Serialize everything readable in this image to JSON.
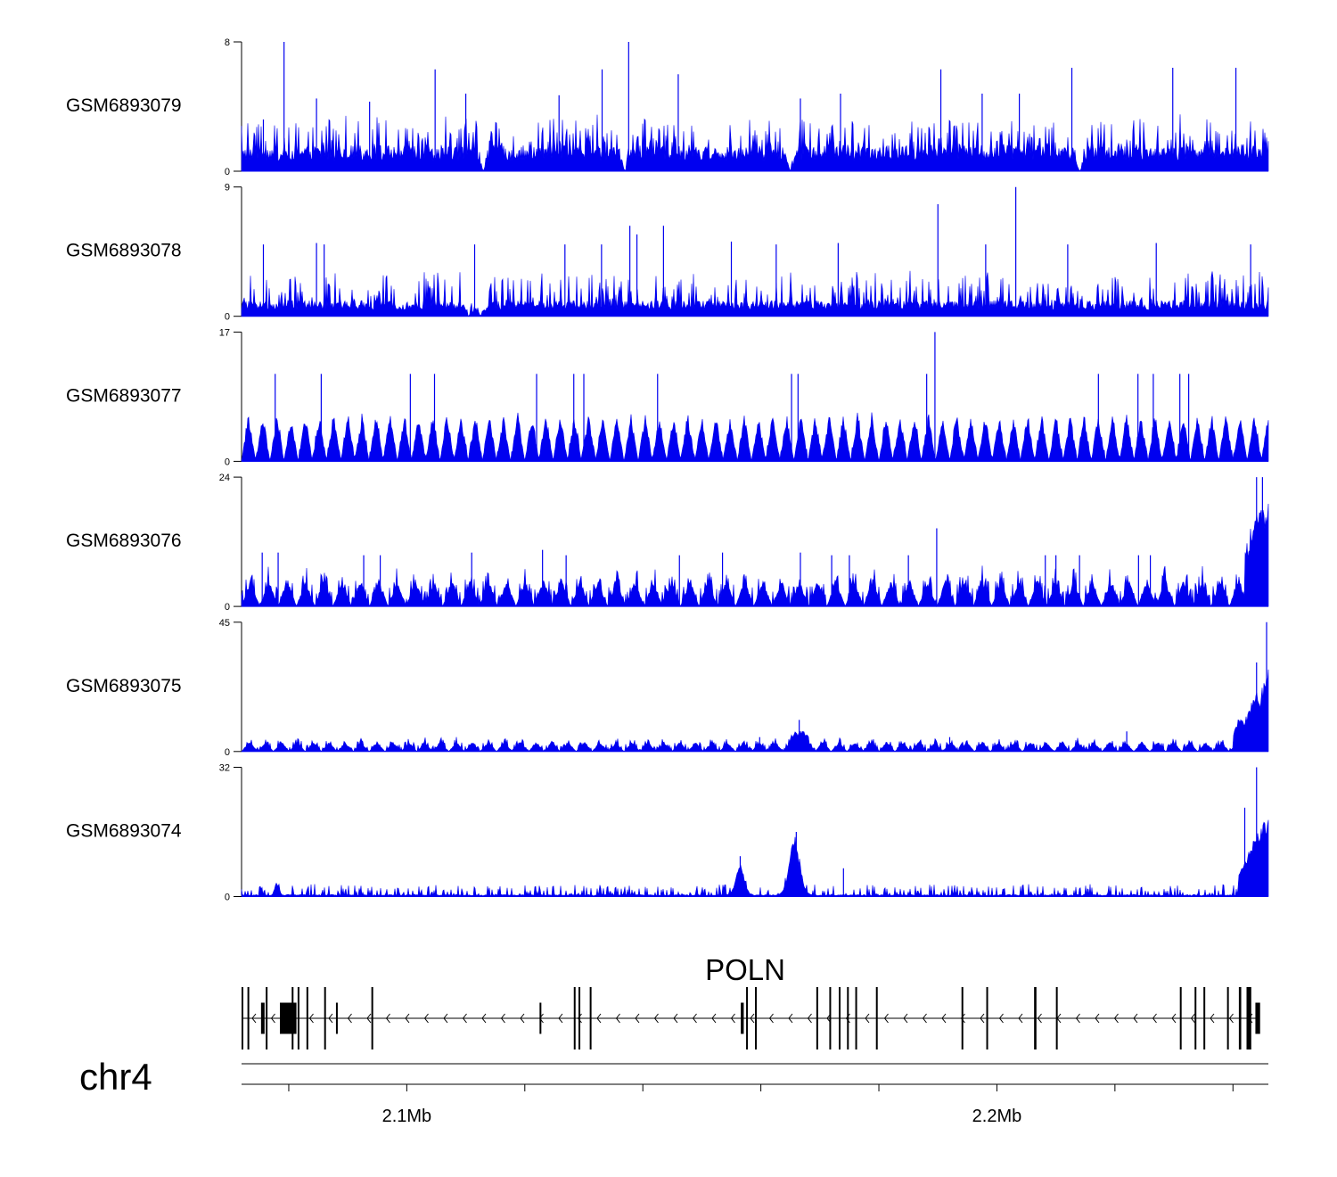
{
  "chart_data": {
    "type": "area",
    "description_style": "genome-browser coverage tracks",
    "x_unit": "Mb",
    "xlim": [
      2.072,
      2.246
    ],
    "series_color": "#0000f0",
    "tracks": [
      {
        "name": "GSM6893079",
        "ymin": 0,
        "ymax": 8,
        "ymin_label": "0",
        "ymax_label": "8",
        "baseline": 1.6,
        "noise": 0.9,
        "spikes": [
          [
            2.0792,
            8
          ],
          [
            2.0757,
            3.2
          ],
          [
            2.0847,
            4.5
          ],
          [
            2.0937,
            4.3
          ],
          [
            2.1048,
            6.3
          ],
          [
            2.11,
            4.8
          ],
          [
            2.1258,
            4.7
          ],
          [
            2.1331,
            6.3
          ],
          [
            2.1376,
            8
          ],
          [
            2.146,
            6.0
          ],
          [
            2.1667,
            4.5
          ],
          [
            2.1735,
            4.8
          ],
          [
            2.1905,
            6.3
          ],
          [
            2.1975,
            4.8
          ],
          [
            2.2038,
            4.8
          ],
          [
            2.2127,
            6.4
          ],
          [
            2.2298,
            6.4
          ],
          [
            2.2405,
            6.4
          ]
        ],
        "valleys": [
          2.113,
          2.137,
          2.165,
          2.214
        ]
      },
      {
        "name": "GSM6893078",
        "ymin": 0,
        "ymax": 9,
        "ymin_label": "0",
        "ymax_label": "9",
        "baseline": 1.1,
        "noise": 1.0,
        "spikes": [
          [
            2.0757,
            5.0
          ],
          [
            2.0847,
            5.1
          ],
          [
            2.086,
            5.0
          ],
          [
            2.1115,
            5.0
          ],
          [
            2.1268,
            5.0
          ],
          [
            2.133,
            5.0
          ],
          [
            2.1378,
            6.3
          ],
          [
            2.139,
            5.7
          ],
          [
            2.1435,
            6.3
          ],
          [
            2.155,
            5.2
          ],
          [
            2.1626,
            5.0
          ],
          [
            2.1731,
            5.1
          ],
          [
            2.19,
            7.8
          ],
          [
            2.1981,
            5.0
          ],
          [
            2.2032,
            9.0
          ],
          [
            2.212,
            5.0
          ],
          [
            2.227,
            5.1
          ],
          [
            2.243,
            5.0
          ]
        ],
        "valleys": [
          2.1105,
          2.1125
        ]
      },
      {
        "name": "GSM6893077",
        "ymin": 0,
        "ymax": 17,
        "ymin_label": "0",
        "ymax_label": "17",
        "baseline": 0,
        "noise": 0.3,
        "triangle_step": 0.0024,
        "triangle_height": 5.5,
        "spikes": [
          [
            2.0777,
            11.5
          ],
          [
            2.0855,
            11.5
          ],
          [
            2.1006,
            11.5
          ],
          [
            2.1047,
            11.5
          ],
          [
            2.122,
            11.5
          ],
          [
            2.1283,
            11.5
          ],
          [
            2.13,
            11.5
          ],
          [
            2.1425,
            11.5
          ],
          [
            2.1652,
            11.5
          ],
          [
            2.1663,
            11.5
          ],
          [
            2.1881,
            11.5
          ],
          [
            2.1895,
            17
          ],
          [
            2.2172,
            11.5
          ],
          [
            2.2239,
            11.5
          ],
          [
            2.2265,
            11.5
          ],
          [
            2.231,
            11.5
          ],
          [
            2.2325,
            11.5
          ]
        ],
        "valleys": []
      },
      {
        "name": "GSM6893076",
        "ymin": 0,
        "ymax": 24,
        "ymin_label": "0",
        "ymax_label": "24",
        "baseline": 0,
        "noise": 1.5,
        "triangle_step": 0.0031,
        "triangle_height": 4.5,
        "spikes": [
          [
            2.0755,
            10
          ],
          [
            2.0782,
            10
          ],
          [
            2.0927,
            9.5
          ],
          [
            2.0955,
            9.5
          ],
          [
            2.111,
            10
          ],
          [
            2.123,
            10.5
          ],
          [
            2.127,
            9.5
          ],
          [
            2.1462,
            9.5
          ],
          [
            2.1535,
            10
          ],
          [
            2.1667,
            10
          ],
          [
            2.172,
            9.5
          ],
          [
            2.175,
            9.5
          ],
          [
            2.185,
            9.5
          ],
          [
            2.1898,
            14.5
          ],
          [
            2.2082,
            9.5
          ],
          [
            2.21,
            9.5
          ],
          [
            2.214,
            9.5
          ],
          [
            2.224,
            9.5
          ],
          [
            2.226,
            9.5
          ],
          [
            2.2424,
            10
          ],
          [
            2.244,
            24
          ],
          [
            2.245,
            24
          ]
        ],
        "rise": [
          [
            2.242,
            2.246,
            8,
            18
          ]
        ],
        "valleys": []
      },
      {
        "name": "GSM6893075",
        "ymin": 0,
        "ymax": 45,
        "ymin_label": "0",
        "ymax_label": "45",
        "baseline": 0,
        "noise": 1.0,
        "triangle_step": 0.0027,
        "triangle_height": 3.0,
        "spikes": [
          [
            2.1665,
            11
          ],
          [
            2.1598,
            5
          ],
          [
            2.192,
            5
          ],
          [
            2.222,
            7
          ],
          [
            2.244,
            31
          ],
          [
            2.2457,
            45
          ]
        ],
        "rise": [
          [
            2.24,
            2.246,
            4,
            27
          ]
        ],
        "bumps": [
          [
            2.1665,
            0.0012,
            7
          ]
        ],
        "valleys": []
      },
      {
        "name": "GSM6893074",
        "ymin": 0,
        "ymax": 32,
        "ymin_label": "0",
        "ymax_label": "32",
        "baseline": 0.5,
        "noise": 1.2,
        "spikes": [
          [
            2.1565,
            10
          ],
          [
            2.166,
            16
          ],
          [
            2.174,
            7
          ],
          [
            2.244,
            32
          ],
          [
            2.242,
            22
          ]
        ],
        "rise": [
          [
            2.241,
            2.246,
            5,
            22
          ]
        ],
        "bumps": [
          [
            2.1565,
            0.001,
            8
          ],
          [
            2.1657,
            0.0013,
            14
          ],
          [
            2.078,
            0.0005,
            3.5
          ]
        ],
        "valleys": []
      }
    ],
    "gene": {
      "name": "POLN",
      "strand": "-",
      "start": 2.072,
      "end": 2.244,
      "exons": [
        [
          2.072,
          0.0002,
          "tall"
        ],
        [
          2.073,
          0.0002,
          "tall"
        ],
        [
          2.0753,
          0.0006,
          "short"
        ],
        [
          2.0761,
          0.0002,
          "tall"
        ],
        [
          2.0785,
          0.0028,
          "short"
        ],
        [
          2.0805,
          0.0002,
          "tall"
        ],
        [
          2.0815,
          0.0002,
          "tall"
        ],
        [
          2.083,
          0.0002,
          "tall"
        ],
        [
          2.086,
          0.0002,
          "tall"
        ],
        [
          2.088,
          0.0002,
          "short"
        ],
        [
          2.094,
          0.0002,
          "tall"
        ],
        [
          2.1225,
          0.0002,
          "short"
        ],
        [
          2.1283,
          0.0002,
          "tall"
        ],
        [
          2.1291,
          0.0002,
          "tall"
        ],
        [
          2.131,
          0.0002,
          "tall"
        ],
        [
          2.1566,
          0.0005,
          "short"
        ],
        [
          2.1575,
          0.0002,
          "tall"
        ],
        [
          2.159,
          0.0002,
          "tall"
        ],
        [
          2.1694,
          0.0002,
          "tall"
        ],
        [
          2.1716,
          0.0002,
          "tall"
        ],
        [
          2.1732,
          0.0002,
          "tall"
        ],
        [
          2.1746,
          0.0002,
          "tall"
        ],
        [
          2.176,
          0.0002,
          "tall"
        ],
        [
          2.1795,
          0.0002,
          "tall"
        ],
        [
          2.194,
          0.0002,
          "tall"
        ],
        [
          2.1982,
          0.0002,
          "tall"
        ],
        [
          2.2063,
          0.0004,
          "tall"
        ],
        [
          2.21,
          0.0002,
          "tall"
        ],
        [
          2.231,
          0.0002,
          "tall"
        ],
        [
          2.2335,
          0.0002,
          "tall"
        ],
        [
          2.235,
          0.0002,
          "tall"
        ],
        [
          2.239,
          0.0002,
          "tall"
        ],
        [
          2.241,
          0.0004,
          "tall"
        ],
        [
          2.2423,
          0.0008,
          "tall"
        ],
        [
          2.2438,
          0.0008,
          "short"
        ]
      ]
    },
    "chromosome": "chr4",
    "x_ticks": [
      2.08,
      2.1,
      2.12,
      2.14,
      2.16,
      2.18,
      2.2,
      2.22,
      2.24
    ],
    "x_tick_labels": [
      {
        "value": 2.1,
        "label": "2.1Mb"
      },
      {
        "value": 2.2,
        "label": "2.2Mb"
      }
    ]
  }
}
